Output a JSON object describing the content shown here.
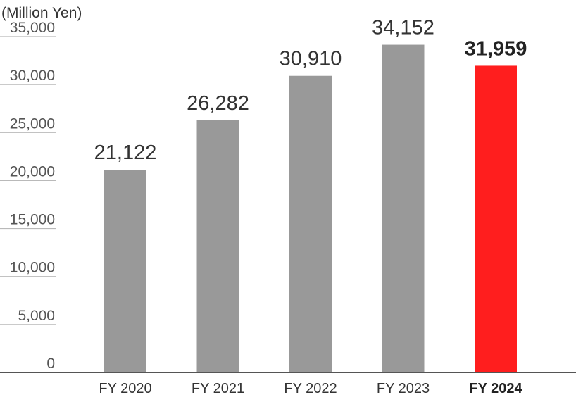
{
  "chart_data": {
    "type": "bar",
    "unit_label": "(Million Yen)",
    "categories": [
      "FY 2020",
      "FY 2021",
      "FY 2022",
      "FY 2023",
      "FY 2024"
    ],
    "values": [
      21122,
      26282,
      30910,
      34152,
      31959
    ],
    "value_labels": [
      "21,122",
      "26,282",
      "30,910",
      "34,152",
      "31,959"
    ],
    "y_ticks": [
      0,
      5000,
      10000,
      15000,
      20000,
      25000,
      30000,
      35000
    ],
    "y_tick_labels": [
      "0",
      "5,000",
      "10,000",
      "15,000",
      "20,000",
      "25,000",
      "30,000",
      "35,000"
    ],
    "ylim": [
      0,
      35000
    ],
    "highlight_category": "FY 2024",
    "grid": true,
    "legend": "none",
    "colors": {
      "bar": "#999999",
      "highlight_bar": "#ff1e1e",
      "gridline": "#b9b9b9",
      "baseline": "#555555"
    }
  }
}
